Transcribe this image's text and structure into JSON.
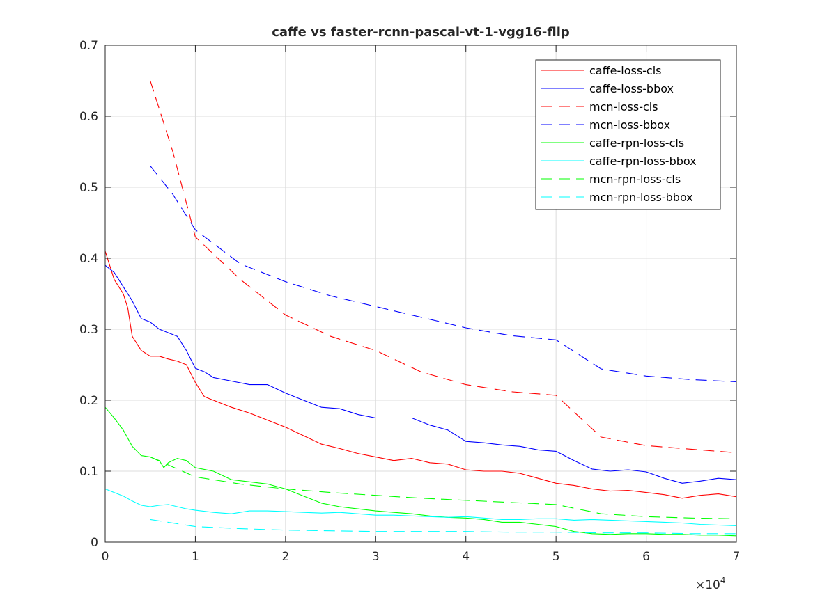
{
  "chart_data": {
    "type": "line",
    "title": "caffe vs faster-rcnn-pascal-vt-1-vgg16-flip",
    "xlabel": "",
    "ylabel": "",
    "xlim": [
      0,
      70000
    ],
    "ylim": [
      0,
      0.7
    ],
    "x_ticks": [
      0,
      10000,
      20000,
      30000,
      40000,
      50000,
      60000,
      70000
    ],
    "x_tick_labels": [
      "0",
      "1",
      "2",
      "3",
      "4",
      "5",
      "6",
      "7"
    ],
    "x_exponent_label": "×10",
    "x_exponent_power": "4",
    "y_ticks": [
      0,
      0.1,
      0.2,
      0.3,
      0.4,
      0.5,
      0.6,
      0.7
    ],
    "y_tick_labels": [
      "0",
      "0.1",
      "0.2",
      "0.3",
      "0.4",
      "0.5",
      "0.6",
      "0.7"
    ],
    "grid": true,
    "legend_position": "top-right",
    "series": [
      {
        "name": "caffe-loss-cls",
        "color": "#ff0000",
        "style": "solid",
        "x": [
          0,
          1000,
          2000,
          2500,
          3000,
          4000,
          5000,
          6000,
          7000,
          8000,
          9000,
          10000,
          11000,
          12000,
          14000,
          16000,
          18000,
          20000,
          22000,
          24000,
          26000,
          28000,
          30000,
          32000,
          34000,
          36000,
          38000,
          40000,
          42000,
          44000,
          46000,
          48000,
          50000,
          52000,
          54000,
          56000,
          58000,
          60000,
          62000,
          64000,
          66000,
          68000,
          70000
        ],
        "y": [
          0.41,
          0.37,
          0.35,
          0.33,
          0.29,
          0.27,
          0.262,
          0.262,
          0.258,
          0.255,
          0.25,
          0.225,
          0.205,
          0.2,
          0.19,
          0.182,
          0.172,
          0.162,
          0.15,
          0.138,
          0.132,
          0.125,
          0.12,
          0.115,
          0.118,
          0.112,
          0.11,
          0.102,
          0.1,
          0.1,
          0.097,
          0.09,
          0.083,
          0.08,
          0.075,
          0.072,
          0.073,
          0.07,
          0.067,
          0.062,
          0.066,
          0.068,
          0.064
        ]
      },
      {
        "name": "caffe-loss-bbox",
        "color": "#0000ff",
        "style": "solid",
        "x": [
          0,
          1000,
          2000,
          3000,
          4000,
          5000,
          6000,
          7000,
          8000,
          9000,
          10000,
          11000,
          12000,
          14000,
          16000,
          18000,
          20000,
          22000,
          24000,
          26000,
          28000,
          30000,
          32000,
          34000,
          36000,
          38000,
          40000,
          42000,
          44000,
          46000,
          48000,
          50000,
          52000,
          54000,
          56000,
          58000,
          60000,
          62000,
          64000,
          66000,
          68000,
          70000
        ],
        "y": [
          0.39,
          0.38,
          0.36,
          0.34,
          0.315,
          0.31,
          0.3,
          0.295,
          0.29,
          0.27,
          0.245,
          0.24,
          0.232,
          0.227,
          0.222,
          0.222,
          0.21,
          0.2,
          0.19,
          0.188,
          0.18,
          0.175,
          0.175,
          0.175,
          0.165,
          0.158,
          0.142,
          0.14,
          0.137,
          0.135,
          0.13,
          0.128,
          0.115,
          0.103,
          0.1,
          0.102,
          0.099,
          0.09,
          0.083,
          0.086,
          0.09,
          0.088
        ]
      },
      {
        "name": "mcn-loss-cls",
        "color": "#ff0000",
        "style": "dashed",
        "x": [
          5000,
          7500,
          10000,
          15000,
          20000,
          25000,
          30000,
          35000,
          40000,
          45000,
          50000,
          55000,
          60000,
          65000,
          70000
        ],
        "y": [
          0.65,
          0.55,
          0.43,
          0.37,
          0.32,
          0.29,
          0.27,
          0.24,
          0.222,
          0.212,
          0.207,
          0.148,
          0.136,
          0.131,
          0.126
        ]
      },
      {
        "name": "mcn-loss-bbox",
        "color": "#0000ff",
        "style": "dashed",
        "x": [
          5000,
          7500,
          10000,
          15000,
          20000,
          25000,
          30000,
          35000,
          40000,
          45000,
          50000,
          55000,
          60000,
          65000,
          70000
        ],
        "y": [
          0.53,
          0.49,
          0.44,
          0.392,
          0.367,
          0.347,
          0.332,
          0.317,
          0.302,
          0.291,
          0.285,
          0.244,
          0.234,
          0.229,
          0.226
        ]
      },
      {
        "name": "caffe-rpn-loss-cls",
        "color": "#00ff00",
        "style": "solid",
        "x": [
          0,
          1000,
          2000,
          3000,
          4000,
          5000,
          6000,
          6500,
          7000,
          8000,
          9000,
          10000,
          12000,
          14000,
          16000,
          18000,
          20000,
          22000,
          24000,
          26000,
          28000,
          30000,
          32000,
          34000,
          36000,
          38000,
          40000,
          42000,
          44000,
          46000,
          48000,
          50000,
          52000,
          54000,
          56000,
          58000,
          60000,
          62000,
          64000,
          66000,
          68000,
          70000
        ],
        "y": [
          0.19,
          0.175,
          0.158,
          0.135,
          0.122,
          0.12,
          0.115,
          0.105,
          0.112,
          0.118,
          0.115,
          0.105,
          0.1,
          0.088,
          0.085,
          0.082,
          0.075,
          0.065,
          0.055,
          0.05,
          0.047,
          0.044,
          0.042,
          0.04,
          0.037,
          0.035,
          0.034,
          0.032,
          0.028,
          0.028,
          0.025,
          0.022,
          0.015,
          0.012,
          0.011,
          0.012,
          0.012,
          0.011,
          0.011,
          0.01,
          0.01,
          0.009
        ]
      },
      {
        "name": "caffe-rpn-loss-bbox",
        "color": "#00ffff",
        "style": "solid",
        "x": [
          0,
          1000,
          2000,
          3000,
          4000,
          5000,
          6000,
          7000,
          8000,
          9000,
          10000,
          12000,
          14000,
          16000,
          18000,
          20000,
          22000,
          24000,
          26000,
          28000,
          30000,
          32000,
          34000,
          36000,
          38000,
          40000,
          42000,
          44000,
          46000,
          48000,
          50000,
          52000,
          54000,
          56000,
          58000,
          60000,
          62000,
          64000,
          66000,
          68000,
          70000
        ],
        "y": [
          0.075,
          0.07,
          0.065,
          0.058,
          0.052,
          0.05,
          0.052,
          0.053,
          0.05,
          0.047,
          0.045,
          0.042,
          0.04,
          0.044,
          0.044,
          0.043,
          0.042,
          0.041,
          0.042,
          0.04,
          0.038,
          0.038,
          0.037,
          0.036,
          0.035,
          0.036,
          0.034,
          0.032,
          0.032,
          0.033,
          0.033,
          0.031,
          0.032,
          0.031,
          0.03,
          0.029,
          0.028,
          0.027,
          0.025,
          0.024,
          0.023
        ]
      },
      {
        "name": "mcn-rpn-loss-cls",
        "color": "#00ff00",
        "style": "dashed",
        "x": [
          5000,
          10000,
          15000,
          20000,
          25000,
          30000,
          35000,
          40000,
          45000,
          50000,
          55000,
          60000,
          65000,
          70000
        ],
        "y": [
          0.12,
          0.092,
          0.082,
          0.075,
          0.07,
          0.066,
          0.062,
          0.059,
          0.056,
          0.053,
          0.04,
          0.036,
          0.034,
          0.033
        ]
      },
      {
        "name": "mcn-rpn-loss-bbox",
        "color": "#00ffff",
        "style": "dashed",
        "x": [
          5000,
          10000,
          15000,
          20000,
          25000,
          30000,
          35000,
          40000,
          45000,
          50000,
          55000,
          60000,
          65000,
          70000
        ],
        "y": [
          0.032,
          0.022,
          0.019,
          0.017,
          0.016,
          0.015,
          0.015,
          0.015,
          0.014,
          0.014,
          0.013,
          0.013,
          0.012,
          0.012
        ]
      }
    ]
  }
}
